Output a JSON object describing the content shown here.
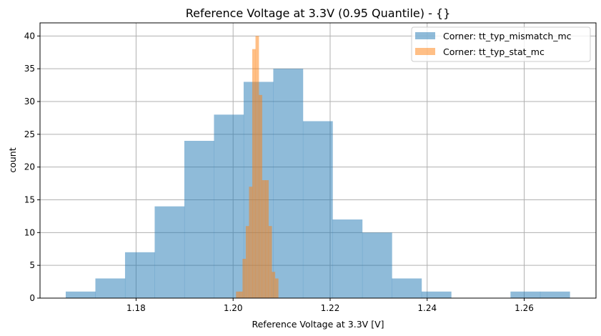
{
  "chart_data": {
    "type": "bar",
    "title": "Reference Voltage at 3.3V (0.95 Quantile) - {}",
    "xlabel": "Reference Voltage at 3.3V [V]",
    "ylabel": "count",
    "xlim": [
      1.1602,
      1.2748
    ],
    "ylim": [
      0,
      42
    ],
    "xticks": [
      "1.18",
      "1.20",
      "1.22",
      "1.24",
      "1.26"
    ],
    "yticks": [
      "0",
      "5",
      "10",
      "15",
      "20",
      "25",
      "30",
      "35",
      "40"
    ],
    "grid": true,
    "legend_position": "top-right",
    "series": [
      {
        "name": "Corner: tt_typ_mismatch_mc",
        "color": "#1f77b4",
        "alpha": 0.5,
        "range": [
          1.1655,
          1.2694
        ],
        "values": [
          1,
          3,
          7,
          14,
          24,
          28,
          33,
          35,
          27,
          12,
          10,
          3,
          1,
          0,
          0,
          1,
          1
        ]
      },
      {
        "name": "Corner: tt_typ_stat_mc",
        "color": "#ff7f0e",
        "alpha": 0.5,
        "range": [
          1.2006,
          1.2093
        ],
        "values": [
          1,
          1,
          6,
          11,
          17,
          38,
          40,
          31,
          18,
          18,
          11,
          4,
          3
        ]
      }
    ]
  }
}
